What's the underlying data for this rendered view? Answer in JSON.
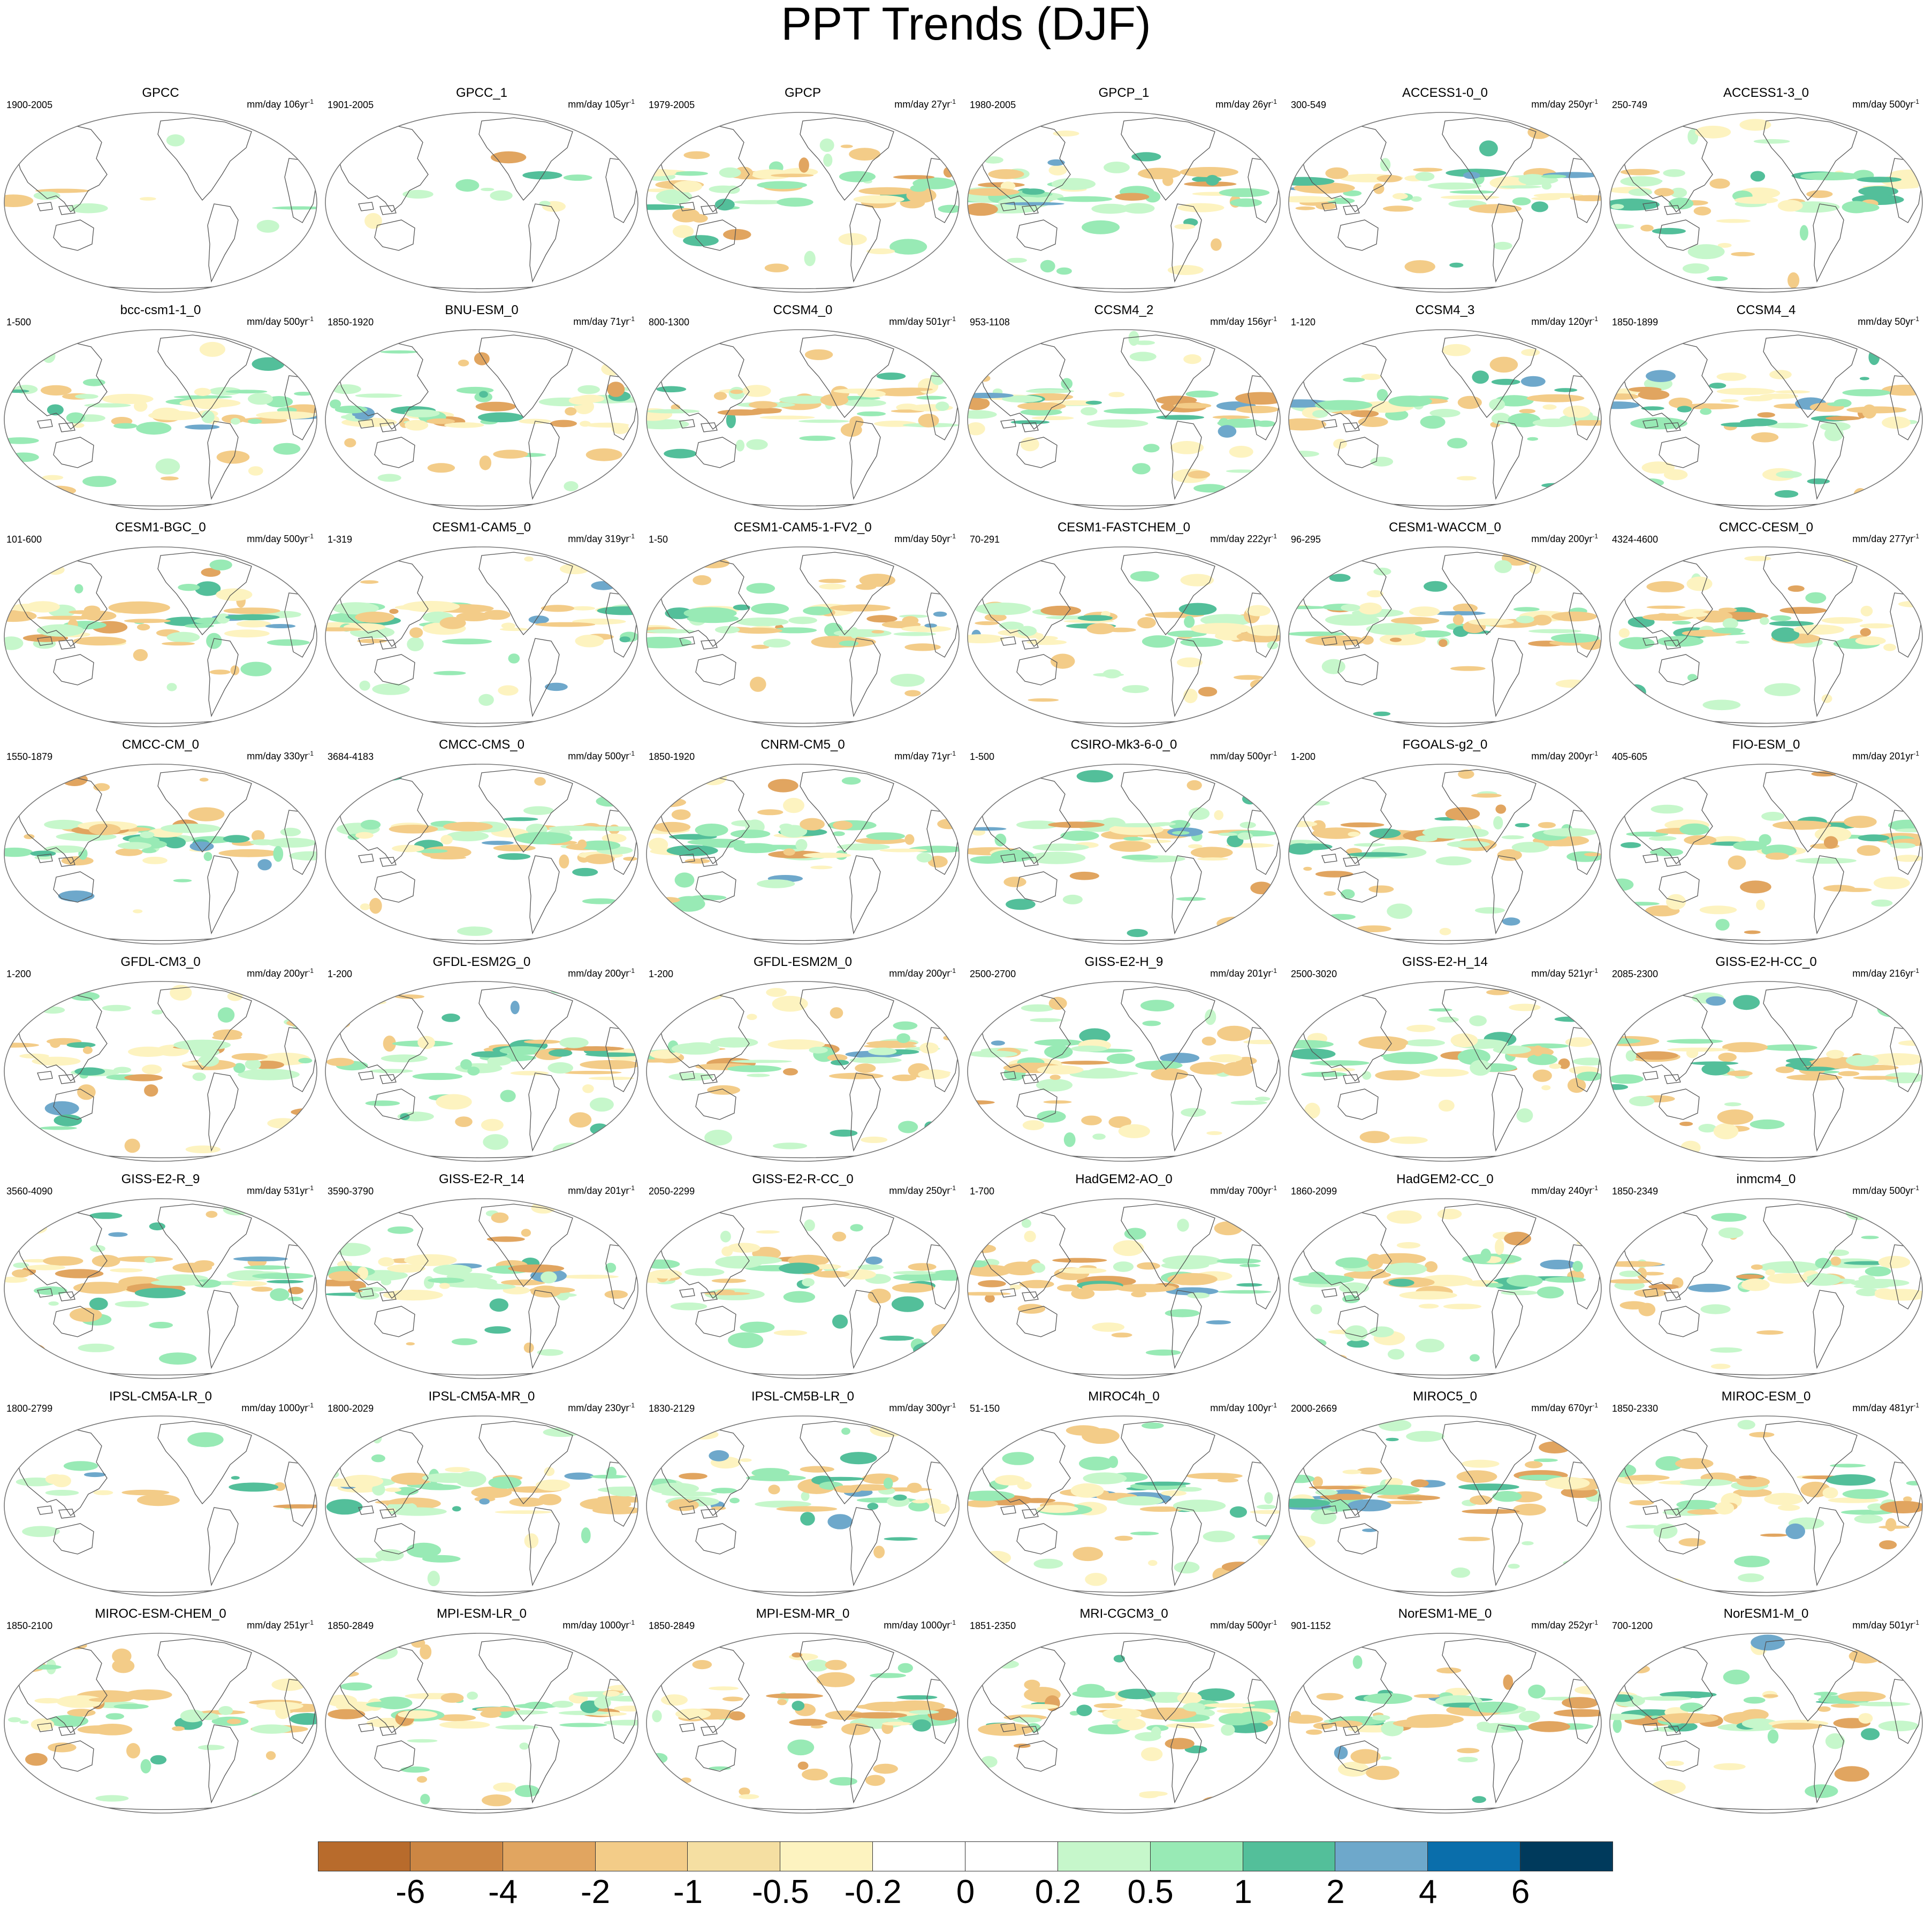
{
  "title": "PPT Trends (DJF)",
  "colorbar": {
    "colors": [
      "#b86b2c",
      "#cc8643",
      "#e1a560",
      "#f3cc88",
      "#f5dfa2",
      "#fdf3c0",
      "#ffffff",
      "#ffffff",
      "#c6f7cb",
      "#98eab5",
      "#53bf9a",
      "#6ea8cb",
      "#0a6eab",
      "#003a5c"
    ],
    "labels": [
      "-6",
      "-4",
      "-2",
      "-1",
      "-0.5",
      "-0.2",
      "0",
      "0.2",
      "0.5",
      "1",
      "2",
      "4",
      "6"
    ]
  },
  "units_prefix": "mm/day ",
  "units_suffix": "yr",
  "units_exp": "-1",
  "panels": [
    {
      "name": "GPCC",
      "period": "1900-2005",
      "years": "106"
    },
    {
      "name": "GPCC_1",
      "period": "1901-2005",
      "years": "105"
    },
    {
      "name": "GPCP",
      "period": "1979-2005",
      "years": "27"
    },
    {
      "name": "GPCP_1",
      "period": "1980-2005",
      "years": "26"
    },
    {
      "name": "ACCESS1-0_0",
      "period": "300-549",
      "years": "250"
    },
    {
      "name": "ACCESS1-3_0",
      "period": "250-749",
      "years": "500"
    },
    {
      "name": "bcc-csm1-1_0",
      "period": "1-500",
      "years": "500"
    },
    {
      "name": "BNU-ESM_0",
      "period": "1850-1920",
      "years": "71"
    },
    {
      "name": "CCSM4_0",
      "period": "800-1300",
      "years": "501"
    },
    {
      "name": "CCSM4_2",
      "period": "953-1108",
      "years": "156"
    },
    {
      "name": "CCSM4_3",
      "period": "1-120",
      "years": "120"
    },
    {
      "name": "CCSM4_4",
      "period": "1850-1899",
      "years": "50"
    },
    {
      "name": "CESM1-BGC_0",
      "period": "101-600",
      "years": "500"
    },
    {
      "name": "CESM1-CAM5_0",
      "period": "1-319",
      "years": "319"
    },
    {
      "name": "CESM1-CAM5-1-FV2_0",
      "period": "1-50",
      "years": "50"
    },
    {
      "name": "CESM1-FASTCHEM_0",
      "period": "70-291",
      "years": "222"
    },
    {
      "name": "CESM1-WACCM_0",
      "period": "96-295",
      "years": "200"
    },
    {
      "name": "CMCC-CESM_0",
      "period": "4324-4600",
      "years": "277"
    },
    {
      "name": "CMCC-CM_0",
      "period": "1550-1879",
      "years": "330"
    },
    {
      "name": "CMCC-CMS_0",
      "period": "3684-4183",
      "years": "500"
    },
    {
      "name": "CNRM-CM5_0",
      "period": "1850-1920",
      "years": "71"
    },
    {
      "name": "CSIRO-Mk3-6-0_0",
      "period": "1-500",
      "years": "500"
    },
    {
      "name": "FGOALS-g2_0",
      "period": "1-200",
      "years": "200"
    },
    {
      "name": "FIO-ESM_0",
      "period": "405-605",
      "years": "201"
    },
    {
      "name": "GFDL-CM3_0",
      "period": "1-200",
      "years": "200"
    },
    {
      "name": "GFDL-ESM2G_0",
      "period": "1-200",
      "years": "200"
    },
    {
      "name": "GFDL-ESM2M_0",
      "period": "1-200",
      "years": "200"
    },
    {
      "name": "GISS-E2-H_9",
      "period": "2500-2700",
      "years": "201"
    },
    {
      "name": "GISS-E2-H_14",
      "period": "2500-3020",
      "years": "521"
    },
    {
      "name": "GISS-E2-H-CC_0",
      "period": "2085-2300",
      "years": "216"
    },
    {
      "name": "GISS-E2-R_9",
      "period": "3560-4090",
      "years": "531"
    },
    {
      "name": "GISS-E2-R_14",
      "period": "3590-3790",
      "years": "201"
    },
    {
      "name": "GISS-E2-R-CC_0",
      "period": "2050-2299",
      "years": "250"
    },
    {
      "name": "HadGEM2-AO_0",
      "period": "1-700",
      "years": "700"
    },
    {
      "name": "HadGEM2-CC_0",
      "period": "1860-2099",
      "years": "240"
    },
    {
      "name": "inmcm4_0",
      "period": "1850-2349",
      "years": "500"
    },
    {
      "name": "IPSL-CM5A-LR_0",
      "period": "1800-2799",
      "years": "1000"
    },
    {
      "name": "IPSL-CM5A-MR_0",
      "period": "1800-2029",
      "years": "230"
    },
    {
      "name": "IPSL-CM5B-LR_0",
      "period": "1830-2129",
      "years": "300"
    },
    {
      "name": "MIROC4h_0",
      "period": "51-150",
      "years": "100"
    },
    {
      "name": "MIROC5_0",
      "period": "2000-2669",
      "years": "670"
    },
    {
      "name": "MIROC-ESM_0",
      "period": "1850-2330",
      "years": "481"
    },
    {
      "name": "MIROC-ESM-CHEM_0",
      "period": "1850-2100",
      "years": "251"
    },
    {
      "name": "MPI-ESM-LR_0",
      "period": "1850-2849",
      "years": "1000"
    },
    {
      "name": "MPI-ESM-MR_0",
      "period": "1850-2849",
      "years": "1000"
    },
    {
      "name": "MRI-CGCM3_0",
      "period": "1851-2350",
      "years": "500"
    },
    {
      "name": "NorESM1-ME_0",
      "period": "901-1152",
      "years": "252"
    },
    {
      "name": "NorESM1-M_0",
      "period": "700-1200",
      "years": "501"
    }
  ]
}
